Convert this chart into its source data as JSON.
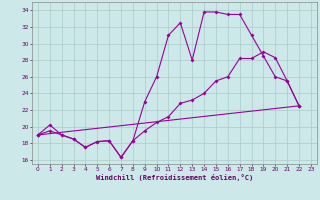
{
  "xlabel": "Windchill (Refroidissement éolien,°C)",
  "xlim": [
    -0.5,
    23.5
  ],
  "ylim": [
    15.5,
    35.0
  ],
  "yticks": [
    16,
    18,
    20,
    22,
    24,
    26,
    28,
    30,
    32,
    34
  ],
  "xticks": [
    0,
    1,
    2,
    3,
    4,
    5,
    6,
    7,
    8,
    9,
    10,
    11,
    12,
    13,
    14,
    15,
    16,
    17,
    18,
    19,
    20,
    21,
    22,
    23
  ],
  "bg_color": "#cce8e8",
  "grid_color": "#aacccc",
  "line_color": "#990099",
  "line1_x": [
    0,
    1,
    2,
    3,
    4,
    5,
    6,
    7,
    8,
    9,
    10,
    11,
    12,
    13,
    14,
    15,
    16,
    17,
    18,
    19,
    20,
    21,
    22
  ],
  "line1_y": [
    19.0,
    20.2,
    19.0,
    18.5,
    17.5,
    18.2,
    18.3,
    16.3,
    18.3,
    23.0,
    26.0,
    31.0,
    32.5,
    28.0,
    33.8,
    33.8,
    33.5,
    33.5,
    31.0,
    28.5,
    26.0,
    25.5,
    22.5
  ],
  "line2_x": [
    0,
    22
  ],
  "line2_y": [
    19.0,
    22.5
  ],
  "line3_x": [
    0,
    1,
    2,
    3,
    4,
    5,
    6,
    7,
    8,
    9,
    10,
    11,
    12,
    13,
    14,
    15,
    16,
    17,
    18,
    19,
    20,
    21,
    22
  ],
  "line3_y": [
    19.0,
    19.5,
    19.0,
    18.5,
    17.5,
    18.2,
    18.3,
    16.3,
    18.3,
    19.5,
    20.5,
    21.2,
    22.8,
    23.2,
    24.0,
    25.5,
    26.0,
    28.2,
    28.2,
    29.0,
    28.3,
    25.5,
    22.5
  ]
}
